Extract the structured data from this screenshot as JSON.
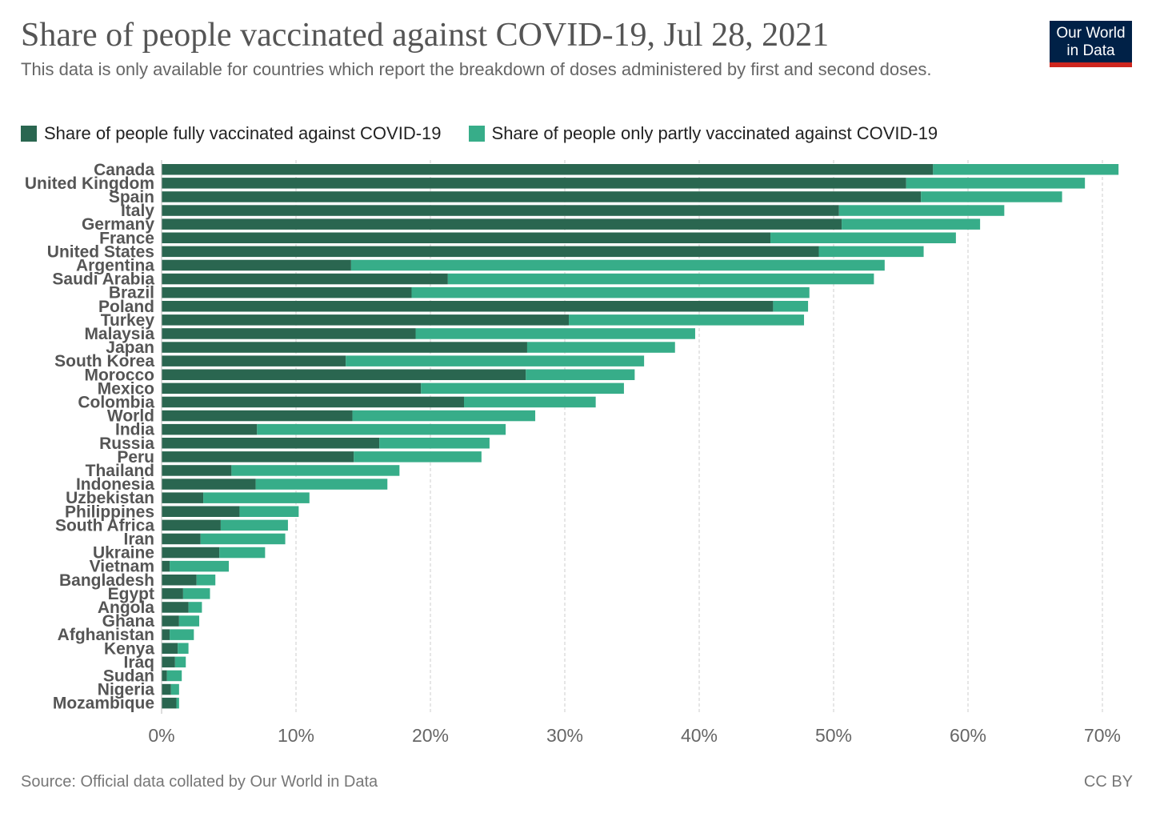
{
  "header": {
    "title": "Share of people vaccinated against COVID-19, Jul 28, 2021",
    "subtitle": "This data is only available for countries which report the breakdown of doses administered by first and second doses."
  },
  "logo": {
    "line1": "Our World",
    "line2": "in Data"
  },
  "footer": {
    "source": "Source: Official data collated by Our World in Data",
    "license": "CC BY"
  },
  "colors": {
    "fully": "#2a6650",
    "partly": "#37ad89",
    "grid": "#cccccc",
    "label": "#555555",
    "logo_bg": "#002147",
    "logo_accent": "#ce261e"
  },
  "chart_data": {
    "type": "bar",
    "orientation": "horizontal",
    "stacked": true,
    "legend_placement": "top",
    "grid": true,
    "xlim": [
      0,
      70
    ],
    "x_ticks": [
      0,
      10,
      20,
      30,
      40,
      50,
      60,
      70
    ],
    "x_tick_labels": [
      "0%",
      "10%",
      "20%",
      "30%",
      "40%",
      "50%",
      "60%",
      "70%"
    ],
    "categories": [
      "Canada",
      "United Kingdom",
      "Spain",
      "Italy",
      "Germany",
      "France",
      "United States",
      "Argentina",
      "Saudi Arabia",
      "Brazil",
      "Poland",
      "Turkey",
      "Malaysia",
      "Japan",
      "South Korea",
      "Morocco",
      "Mexico",
      "Colombia",
      "World",
      "India",
      "Russia",
      "Peru",
      "Thailand",
      "Indonesia",
      "Uzbekistan",
      "Philippines",
      "South Africa",
      "Iran",
      "Ukraine",
      "Vietnam",
      "Bangladesh",
      "Egypt",
      "Angola",
      "Ghana",
      "Afghanistan",
      "Kenya",
      "Iraq",
      "Sudan",
      "Nigeria",
      "Mozambique"
    ],
    "series": [
      {
        "name": "Share of people fully vaccinated against COVID-19",
        "values": [
          57.4,
          55.4,
          56.5,
          50.4,
          50.6,
          45.3,
          48.9,
          14.1,
          21.3,
          18.6,
          45.5,
          30.3,
          18.9,
          27.2,
          13.7,
          27.1,
          19.3,
          22.5,
          14.2,
          7.1,
          16.2,
          14.3,
          5.2,
          7.0,
          3.1,
          5.8,
          4.4,
          2.9,
          4.3,
          0.6,
          2.6,
          1.6,
          2.0,
          1.3,
          0.6,
          1.2,
          1.0,
          0.4,
          0.7,
          1.1
        ]
      },
      {
        "name": "Share of people only partly vaccinated against COVID-19",
        "values": [
          13.8,
          13.3,
          10.5,
          12.3,
          10.3,
          13.8,
          7.8,
          39.7,
          31.7,
          29.6,
          2.6,
          17.5,
          20.8,
          11.0,
          22.2,
          8.1,
          15.1,
          9.8,
          13.6,
          18.5,
          8.2,
          9.5,
          12.5,
          9.8,
          7.9,
          4.4,
          5.0,
          6.3,
          3.4,
          4.4,
          1.4,
          2.0,
          1.0,
          1.5,
          1.8,
          0.8,
          0.8,
          1.1,
          0.6,
          0.2
        ]
      }
    ]
  }
}
